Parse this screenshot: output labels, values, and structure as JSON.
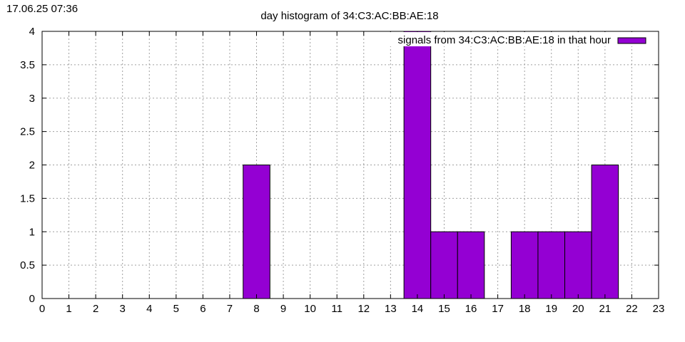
{
  "timestamp": "17.06.25 07:36",
  "chart_data": {
    "type": "bar",
    "title": "day histogram of 34:C3:AC:BB:AE:18",
    "xlabel": "",
    "ylabel": "",
    "xlim": [
      0,
      23
    ],
    "ylim": [
      0,
      4
    ],
    "xticks": [
      0,
      1,
      2,
      3,
      4,
      5,
      6,
      7,
      8,
      9,
      10,
      11,
      12,
      13,
      14,
      15,
      16,
      17,
      18,
      19,
      20,
      21,
      22,
      23
    ],
    "yticks": [
      0,
      0.5,
      1,
      1.5,
      2,
      2.5,
      3,
      3.5,
      4
    ],
    "ytick_labels": [
      "0",
      "0.5",
      "1",
      "1.5",
      "2",
      "2.5",
      "3",
      "3.5",
      "4"
    ],
    "grid": true,
    "legend_position": "top-right",
    "series": [
      {
        "name": "signals from 34:C3:AC:BB:AE:18 in that hour",
        "color": "#9400d3",
        "x": [
          8,
          14,
          15,
          16,
          18,
          19,
          20,
          21
        ],
        "values": [
          2,
          4,
          1,
          1,
          1,
          1,
          1,
          2
        ]
      }
    ]
  }
}
